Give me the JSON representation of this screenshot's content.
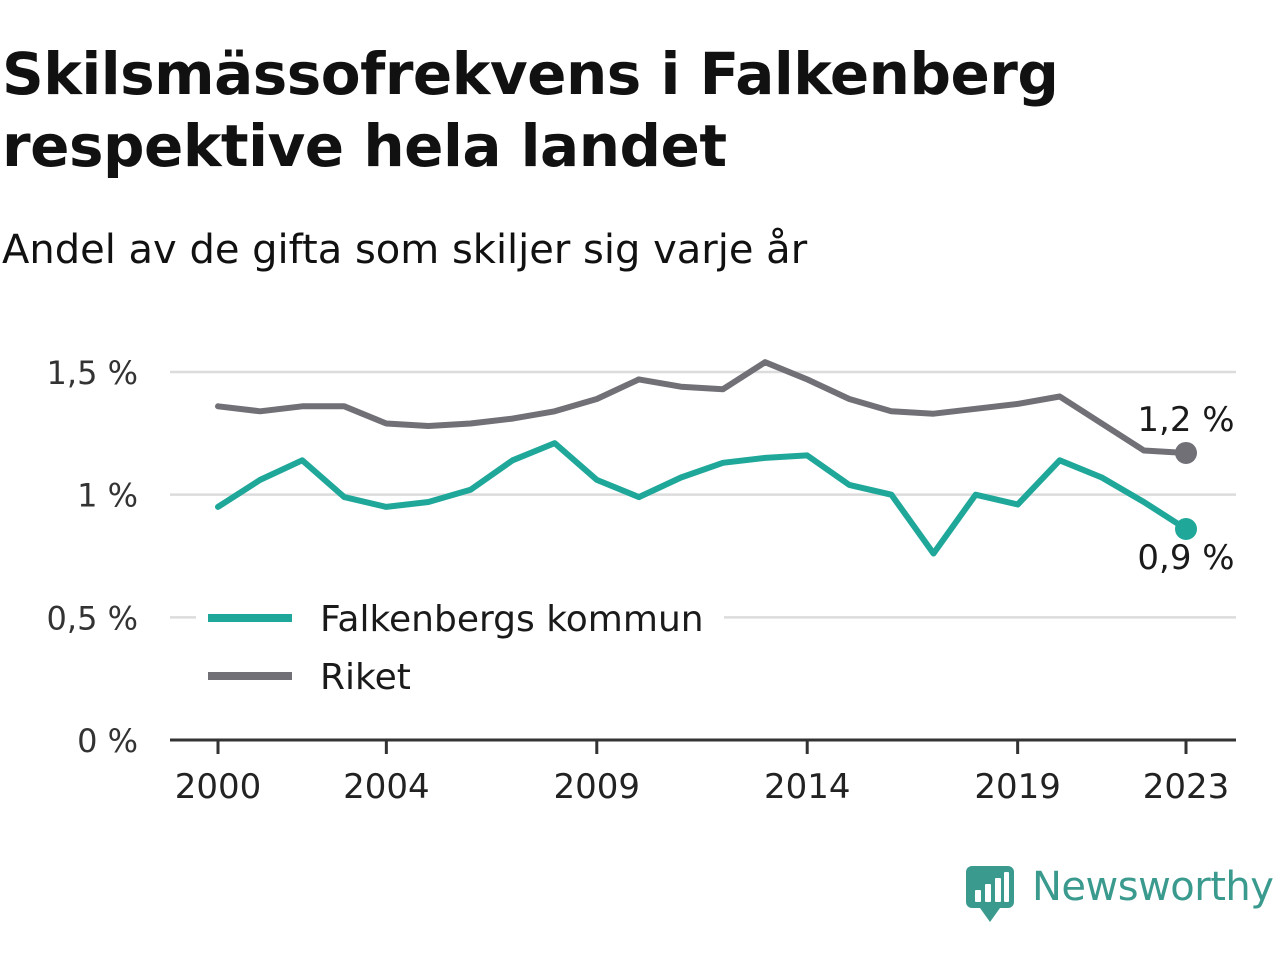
{
  "title": "Skilsmässofrekvens i Falkenberg respektive hela landet",
  "subtitle": "Andel av de gifta som skiljer sig varje år",
  "brand": "Newsworthy",
  "colors": {
    "falkenberg": "#1fa89a",
    "riket": "#707076",
    "grid": "#dcdcdc",
    "axis": "#333333",
    "brand": "#3a9a8e"
  },
  "chart_data": {
    "type": "line",
    "x": [
      2000,
      2001,
      2002,
      2003,
      2004,
      2005,
      2006,
      2007,
      2008,
      2009,
      2010,
      2011,
      2012,
      2013,
      2014,
      2015,
      2016,
      2017,
      2018,
      2019,
      2020,
      2021,
      2022,
      2023
    ],
    "series": [
      {
        "name": "Falkenbergs kommun",
        "color": "#1fa89a",
        "values": [
          0.95,
          1.06,
          1.14,
          0.99,
          0.95,
          0.97,
          1.02,
          1.14,
          1.21,
          1.06,
          0.99,
          1.07,
          1.13,
          1.15,
          1.16,
          1.04,
          1.0,
          0.76,
          1.0,
          0.96,
          1.14,
          1.07,
          0.97,
          0.86
        ],
        "end_label": "0,9 %"
      },
      {
        "name": "Riket",
        "color": "#707076",
        "values": [
          1.36,
          1.34,
          1.36,
          1.36,
          1.29,
          1.28,
          1.29,
          1.31,
          1.34,
          1.39,
          1.47,
          1.44,
          1.43,
          1.54,
          1.47,
          1.39,
          1.34,
          1.33,
          1.35,
          1.37,
          1.4,
          1.29,
          1.18,
          1.17
        ],
        "end_label": "1,2 %"
      }
    ],
    "y_ticks": [
      {
        "value": 0,
        "label": "0 %"
      },
      {
        "value": 0.5,
        "label": "0,5 %"
      },
      {
        "value": 1,
        "label": "1 %"
      },
      {
        "value": 1.5,
        "label": "1,5 %"
      }
    ],
    "x_ticks": [
      {
        "value": 2000,
        "label": "2000"
      },
      {
        "value": 2004,
        "label": "2004"
      },
      {
        "value": 2009,
        "label": "2009"
      },
      {
        "value": 2014,
        "label": "2014"
      },
      {
        "value": 2019,
        "label": "2019"
      },
      {
        "value": 2023,
        "label": "2023"
      }
    ],
    "xlim": [
      2000,
      2023
    ],
    "ylim": [
      0,
      1.5
    ],
    "grid": true,
    "legend": "bottom-left"
  }
}
